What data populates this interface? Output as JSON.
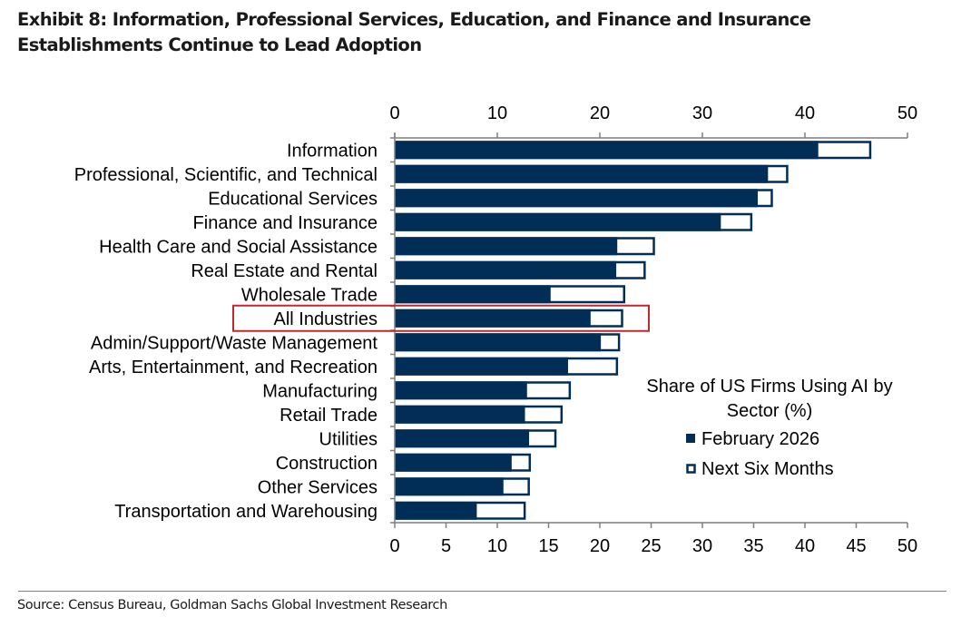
{
  "exhibit": {
    "title": "Exhibit 8: Information, Professional Services, Education, and Finance and Insurance Establishments Continue to Lead Adoption",
    "source": "Source: Census Bureau, Goldman Sachs Global Investment Research"
  },
  "colors": {
    "primary": "#002e57",
    "highlight_box": "#c0282d",
    "axis": "#7f7f7f"
  },
  "chart_data": {
    "type": "bar",
    "orientation": "horizontal",
    "stacked": true,
    "title": "Share of US Firms Using AI by Sector (%)",
    "xlabel": "",
    "ylabel": "",
    "xlim": [
      0,
      50
    ],
    "top_axis_ticks": [
      0,
      10,
      20,
      30,
      40,
      50
    ],
    "bottom_axis_ticks": [
      0,
      5,
      10,
      15,
      20,
      25,
      30,
      35,
      40,
      45,
      50
    ],
    "grid": false,
    "legend_position": "lower-right (inside plot)",
    "legend": [
      "February 2026",
      "Next Six Months"
    ],
    "highlighted_category": "All Industries",
    "categories": [
      "Information",
      "Professional, Scientific, and Technical",
      "Educational Services",
      "Finance and Insurance",
      "Health Care and Social Assistance",
      "Real Estate and Rental",
      "Wholesale Trade",
      "All Industries",
      "Admin/Support/Waste Management",
      "Arts, Entertainment, and Recreation",
      "Manufacturing",
      "Retail Trade",
      "Utilities",
      "Construction",
      "Other Services",
      "Transportation and Warehousing"
    ],
    "series": [
      {
        "name": "February 2026",
        "style": "filled",
        "values": [
          41.3,
          36.4,
          35.4,
          31.8,
          21.7,
          21.6,
          15.2,
          19.1,
          20.1,
          16.9,
          12.9,
          12.7,
          13.1,
          11.4,
          10.6,
          8.0
        ]
      },
      {
        "name": "Next Six Months",
        "style": "outlined",
        "values": [
          46.5,
          38.4,
          36.9,
          34.9,
          25.4,
          24.5,
          22.5,
          22.3,
          22.0,
          21.8,
          17.2,
          16.4,
          15.8,
          13.3,
          13.2,
          12.8
        ]
      }
    ]
  }
}
